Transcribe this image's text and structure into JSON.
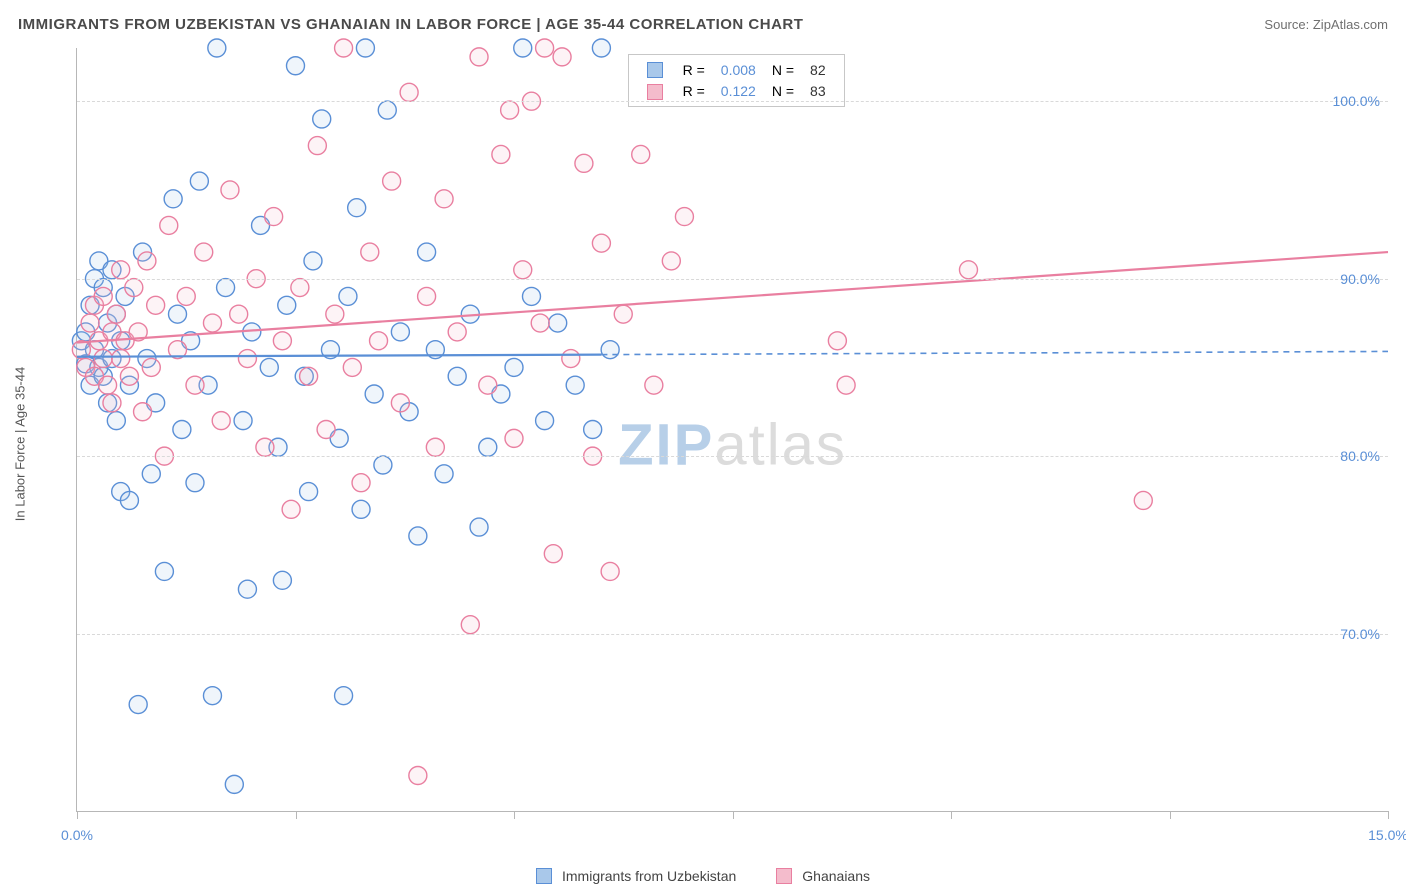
{
  "title": "IMMIGRANTS FROM UZBEKISTAN VS GHANAIAN IN LABOR FORCE | AGE 35-44 CORRELATION CHART",
  "source_label": "Source:",
  "source_name": "ZipAtlas.com",
  "chart": {
    "type": "scatter",
    "y_axis_label": "In Labor Force | Age 35-44",
    "x_domain": [
      0,
      15
    ],
    "y_domain": [
      60,
      103
    ],
    "x_ticks": [
      0,
      2.5,
      5,
      7.5,
      10,
      12.5,
      15
    ],
    "x_tick_labels": {
      "0": "0.0%",
      "15": "15.0%"
    },
    "y_ticks": [
      70,
      80,
      90,
      100
    ],
    "y_tick_labels": {
      "70": "70.0%",
      "80": "80.0%",
      "90": "90.0%",
      "100": "100.0%"
    },
    "marker_radius": 9,
    "marker_stroke_width": 1.4,
    "marker_fill_opacity": 0.18,
    "line_width": 2.2,
    "grid_color": "#d9d9d9",
    "axis_color": "#b7b7b7",
    "tick_label_color": "#5a8fd6",
    "background_color": "#ffffff",
    "watermark": {
      "zip": "ZIP",
      "atlas": "atlas",
      "zip_color": "#b7cfe8",
      "atlas_color": "#dcdcdc",
      "fontsize": 58
    }
  },
  "series": [
    {
      "key": "uzbekistan",
      "label": "Immigrants from Uzbekistan",
      "color_stroke": "#5a8fd6",
      "color_fill": "#a9c8ea",
      "R": "0.008",
      "N": "82",
      "trend": {
        "x1": 0,
        "y1": 85.6,
        "x2": 15,
        "y2": 85.9,
        "solid_until_x": 6.0
      },
      "points": [
        [
          0.05,
          86.5
        ],
        [
          0.1,
          87.0
        ],
        [
          0.1,
          85.2
        ],
        [
          0.15,
          84.0
        ],
        [
          0.15,
          88.5
        ],
        [
          0.2,
          90.0
        ],
        [
          0.2,
          86.0
        ],
        [
          0.25,
          85.0
        ],
        [
          0.25,
          91.0
        ],
        [
          0.3,
          89.5
        ],
        [
          0.3,
          84.5
        ],
        [
          0.35,
          87.5
        ],
        [
          0.35,
          83.0
        ],
        [
          0.4,
          90.5
        ],
        [
          0.4,
          85.5
        ],
        [
          0.45,
          88.0
        ],
        [
          0.45,
          82.0
        ],
        [
          0.5,
          86.5
        ],
        [
          0.5,
          78.0
        ],
        [
          0.55,
          89.0
        ],
        [
          0.6,
          84.0
        ],
        [
          0.6,
          77.5
        ],
        [
          0.7,
          66.0
        ],
        [
          0.75,
          91.5
        ],
        [
          0.8,
          85.5
        ],
        [
          0.85,
          79.0
        ],
        [
          0.9,
          83.0
        ],
        [
          1.0,
          73.5
        ],
        [
          1.1,
          94.5
        ],
        [
          1.15,
          88.0
        ],
        [
          1.2,
          81.5
        ],
        [
          1.3,
          86.5
        ],
        [
          1.35,
          78.5
        ],
        [
          1.4,
          95.5
        ],
        [
          1.5,
          84.0
        ],
        [
          1.55,
          66.5
        ],
        [
          1.6,
          103.0
        ],
        [
          1.7,
          89.5
        ],
        [
          1.8,
          61.5
        ],
        [
          1.9,
          82.0
        ],
        [
          1.95,
          72.5
        ],
        [
          2.0,
          87.0
        ],
        [
          2.1,
          93.0
        ],
        [
          2.2,
          85.0
        ],
        [
          2.3,
          80.5
        ],
        [
          2.35,
          73.0
        ],
        [
          2.4,
          88.5
        ],
        [
          2.5,
          102.0
        ],
        [
          2.6,
          84.5
        ],
        [
          2.65,
          78.0
        ],
        [
          2.7,
          91.0
        ],
        [
          2.8,
          99.0
        ],
        [
          2.9,
          86.0
        ],
        [
          3.0,
          81.0
        ],
        [
          3.05,
          66.5
        ],
        [
          3.1,
          89.0
        ],
        [
          3.2,
          94.0
        ],
        [
          3.25,
          77.0
        ],
        [
          3.3,
          103.0
        ],
        [
          3.4,
          83.5
        ],
        [
          3.5,
          79.5
        ],
        [
          3.55,
          99.5
        ],
        [
          3.7,
          87.0
        ],
        [
          3.8,
          82.5
        ],
        [
          3.9,
          75.5
        ],
        [
          4.0,
          91.5
        ],
        [
          4.1,
          86.0
        ],
        [
          4.2,
          79.0
        ],
        [
          4.35,
          84.5
        ],
        [
          4.5,
          88.0
        ],
        [
          4.6,
          76.0
        ],
        [
          4.7,
          80.5
        ],
        [
          4.85,
          83.5
        ],
        [
          5.0,
          85.0
        ],
        [
          5.1,
          103.0
        ],
        [
          5.2,
          89.0
        ],
        [
          5.35,
          82.0
        ],
        [
          5.5,
          87.5
        ],
        [
          5.7,
          84.0
        ],
        [
          5.9,
          81.5
        ],
        [
          6.0,
          103.0
        ],
        [
          6.1,
          86.0
        ]
      ]
    },
    {
      "key": "ghanaians",
      "label": "Ghanaians",
      "color_stroke": "#e97fa0",
      "color_fill": "#f4bccc",
      "R": "0.122",
      "N": "83",
      "trend": {
        "x1": 0,
        "y1": 86.4,
        "x2": 15,
        "y2": 91.5,
        "solid_until_x": 15.0
      },
      "points": [
        [
          0.05,
          86.0
        ],
        [
          0.1,
          85.0
        ],
        [
          0.15,
          87.5
        ],
        [
          0.2,
          84.5
        ],
        [
          0.2,
          88.5
        ],
        [
          0.25,
          86.5
        ],
        [
          0.3,
          85.5
        ],
        [
          0.3,
          89.0
        ],
        [
          0.35,
          84.0
        ],
        [
          0.4,
          87.0
        ],
        [
          0.4,
          83.0
        ],
        [
          0.45,
          88.0
        ],
        [
          0.5,
          85.5
        ],
        [
          0.5,
          90.5
        ],
        [
          0.55,
          86.5
        ],
        [
          0.6,
          84.5
        ],
        [
          0.65,
          89.5
        ],
        [
          0.7,
          87.0
        ],
        [
          0.75,
          82.5
        ],
        [
          0.8,
          91.0
        ],
        [
          0.85,
          85.0
        ],
        [
          0.9,
          88.5
        ],
        [
          1.0,
          80.0
        ],
        [
          1.05,
          93.0
        ],
        [
          1.15,
          86.0
        ],
        [
          1.25,
          89.0
        ],
        [
          1.35,
          84.0
        ],
        [
          1.45,
          91.5
        ],
        [
          1.55,
          87.5
        ],
        [
          1.65,
          82.0
        ],
        [
          1.75,
          95.0
        ],
        [
          1.85,
          88.0
        ],
        [
          1.95,
          85.5
        ],
        [
          2.05,
          90.0
        ],
        [
          2.15,
          80.5
        ],
        [
          2.25,
          93.5
        ],
        [
          2.35,
          86.5
        ],
        [
          2.45,
          77.0
        ],
        [
          2.55,
          89.5
        ],
        [
          2.65,
          84.5
        ],
        [
          2.75,
          97.5
        ],
        [
          2.85,
          81.5
        ],
        [
          2.95,
          88.0
        ],
        [
          3.05,
          103.0
        ],
        [
          3.15,
          85.0
        ],
        [
          3.25,
          78.5
        ],
        [
          3.35,
          91.5
        ],
        [
          3.45,
          86.5
        ],
        [
          3.6,
          95.5
        ],
        [
          3.7,
          83.0
        ],
        [
          3.8,
          100.5
        ],
        [
          3.9,
          62.0
        ],
        [
          4.0,
          89.0
        ],
        [
          4.1,
          80.5
        ],
        [
          4.2,
          94.5
        ],
        [
          4.35,
          87.0
        ],
        [
          4.5,
          70.5
        ],
        [
          4.6,
          102.5
        ],
        [
          4.7,
          84.0
        ],
        [
          4.85,
          97.0
        ],
        [
          5.0,
          81.0
        ],
        [
          5.1,
          90.5
        ],
        [
          5.2,
          100.0
        ],
        [
          5.3,
          87.5
        ],
        [
          5.45,
          74.5
        ],
        [
          5.55,
          102.5
        ],
        [
          5.65,
          85.5
        ],
        [
          5.8,
          96.5
        ],
        [
          5.9,
          80.0
        ],
        [
          6.0,
          92.0
        ],
        [
          6.1,
          73.5
        ],
        [
          6.25,
          88.0
        ],
        [
          6.45,
          97.0
        ],
        [
          6.6,
          84.0
        ],
        [
          6.65,
          102.0
        ],
        [
          6.8,
          91.0
        ],
        [
          6.95,
          93.5
        ],
        [
          8.7,
          86.5
        ],
        [
          8.8,
          84.0
        ],
        [
          12.2,
          77.5
        ],
        [
          10.2,
          90.5
        ],
        [
          5.35,
          103.0
        ],
        [
          4.95,
          99.5
        ]
      ]
    }
  ],
  "stats_box": {
    "label_R": "R =",
    "label_N": "N ="
  }
}
